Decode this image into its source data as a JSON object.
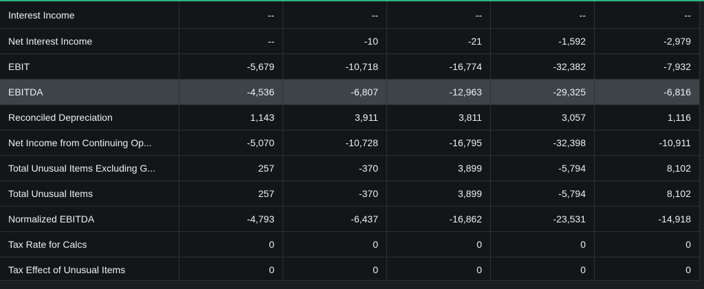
{
  "table": {
    "rows": [
      {
        "label": "Interest Income",
        "values": [
          "--",
          "--",
          "--",
          "--",
          "--"
        ]
      },
      {
        "label": "Net Interest Income",
        "values": [
          "--",
          "-10",
          "-21",
          "-1,592",
          "-2,979"
        ]
      },
      {
        "label": "EBIT",
        "values": [
          "-5,679",
          "-10,718",
          "-16,774",
          "-32,382",
          "-7,932"
        ]
      },
      {
        "label": "EBITDA",
        "values": [
          "-4,536",
          "-6,807",
          "-12,963",
          "-29,325",
          "-6,816"
        ],
        "highlighted": true
      },
      {
        "label": "Reconciled Depreciation",
        "values": [
          "1,143",
          "3,911",
          "3,811",
          "3,057",
          "1,116"
        ]
      },
      {
        "label": "Net Income from Continuing Op...",
        "values": [
          "-5,070",
          "-10,728",
          "-16,795",
          "-32,398",
          "-10,911"
        ]
      },
      {
        "label": "Total Unusual Items Excluding G...",
        "values": [
          "257",
          "-370",
          "3,899",
          "-5,794",
          "8,102"
        ]
      },
      {
        "label": "Total Unusual Items",
        "values": [
          "257",
          "-370",
          "3,899",
          "-5,794",
          "8,102"
        ]
      },
      {
        "label": "Normalized EBITDA",
        "values": [
          "-4,793",
          "-6,437",
          "-16,862",
          "-23,531",
          "-14,918"
        ]
      },
      {
        "label": "Tax Rate for Calcs",
        "values": [
          "0",
          "0",
          "0",
          "0",
          "0"
        ]
      },
      {
        "label": "Tax Effect of Unusual Items",
        "values": [
          "0",
          "0",
          "0",
          "0",
          "0"
        ]
      }
    ]
  },
  "colors": {
    "accent": "#2bb57f",
    "background": "#131619",
    "highlight_row": "#3c4448",
    "text": "#eef0f2"
  }
}
